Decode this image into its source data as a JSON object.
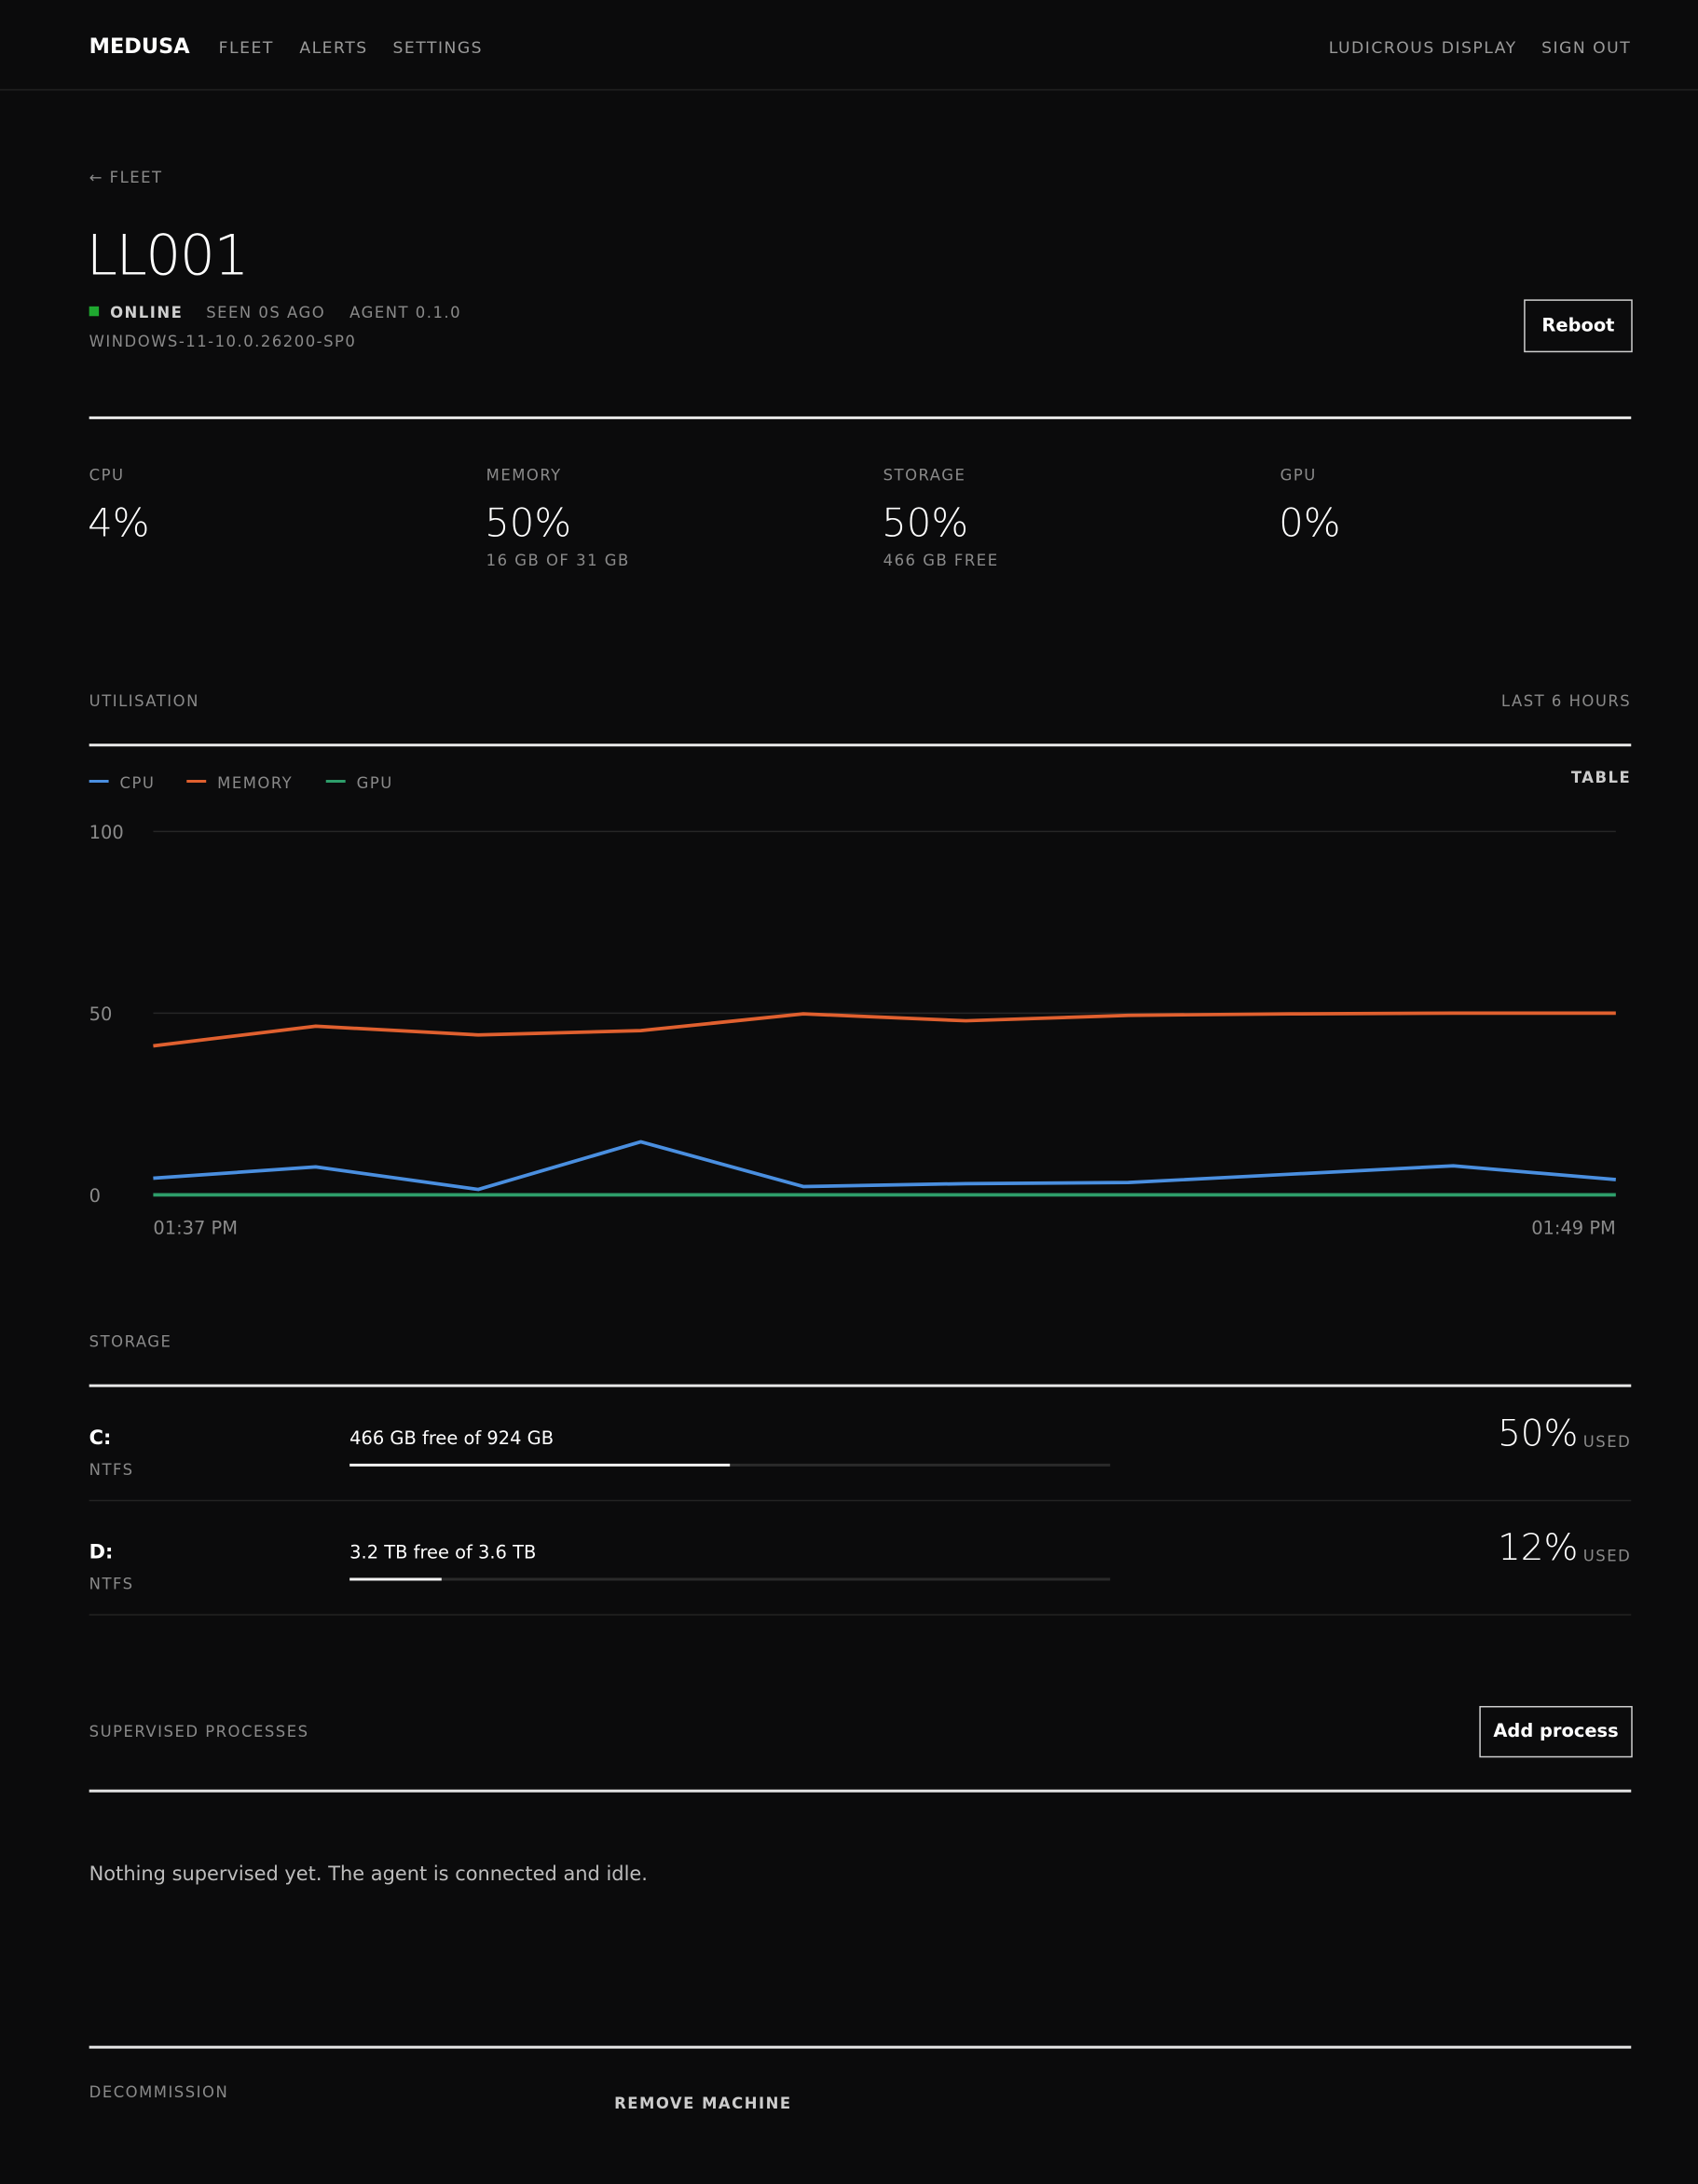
{
  "nav": {
    "brand": "MEDUSA",
    "links": [
      "FLEET",
      "ALERTS",
      "SETTINGS"
    ],
    "right": [
      "LUDICROUS DISPLAY",
      "SIGN OUT"
    ]
  },
  "header": {
    "back": "← FLEET",
    "title": "LL001",
    "status": "ONLINE",
    "seen": "SEEN 0S AGO",
    "agent": "AGENT 0.1.0",
    "os": "WINDOWS-11-10.0.26200-SP0",
    "button": "Reboot"
  },
  "stats": [
    {
      "label": "CPU",
      "value": "4%"
    },
    {
      "label": "MEMORY",
      "value": "50%",
      "sub": "16 GB OF 31 GB"
    },
    {
      "label": "STORAGE",
      "value": "50%",
      "sub": "466 GB FREE"
    },
    {
      "label": "GPU",
      "value": "0%"
    }
  ],
  "utilisation": {
    "title": "UTILISATION",
    "range": "LAST 6 HOURS",
    "toggle": "TABLE"
  },
  "chart_data": {
    "type": "line",
    "categories": [
      "01:37 PM",
      null,
      null,
      null,
      null,
      null,
      null,
      null,
      null,
      "01:49 PM"
    ],
    "series": [
      {
        "name": "CPU",
        "color": "#4a8fe0",
        "values": [
          4.6,
          7.7,
          1.5,
          14.6,
          2.3,
          3.1,
          3.4,
          5.7,
          8,
          4.2
        ]
      },
      {
        "name": "MEMORY",
        "color": "#e0602f",
        "values": [
          41,
          46.4,
          44,
          45.2,
          49.8,
          47.9,
          49.4,
          49.8,
          50,
          50
        ]
      },
      {
        "name": "GPU",
        "color": "#2e9e6a",
        "values": [
          0,
          0,
          0,
          0,
          0,
          0,
          0,
          0,
          0,
          0
        ]
      }
    ],
    "ylim": [
      0,
      100
    ],
    "yticks": [
      0,
      50,
      100
    ],
    "grid": true
  },
  "storage": {
    "title": "STORAGE",
    "drives": [
      {
        "name": "C:",
        "fs": "NTFS",
        "text": "466 GB free of 924 GB",
        "used": {
          "value": 50,
          "label": "50%"
        },
        "unit": "USED"
      },
      {
        "name": "D:",
        "fs": "NTFS",
        "text": "3.2 TB free of 3.6 TB",
        "used": {
          "value": 12,
          "label": "12%"
        },
        "unit": "USED"
      }
    ]
  },
  "processes": {
    "title": "SUPERVISED PROCESSES",
    "button": "Add process",
    "empty": "Nothing supervised yet. The agent is connected and idle."
  },
  "decommission": {
    "title": "DECOMMISSION",
    "action": "REMOVE MACHINE"
  }
}
